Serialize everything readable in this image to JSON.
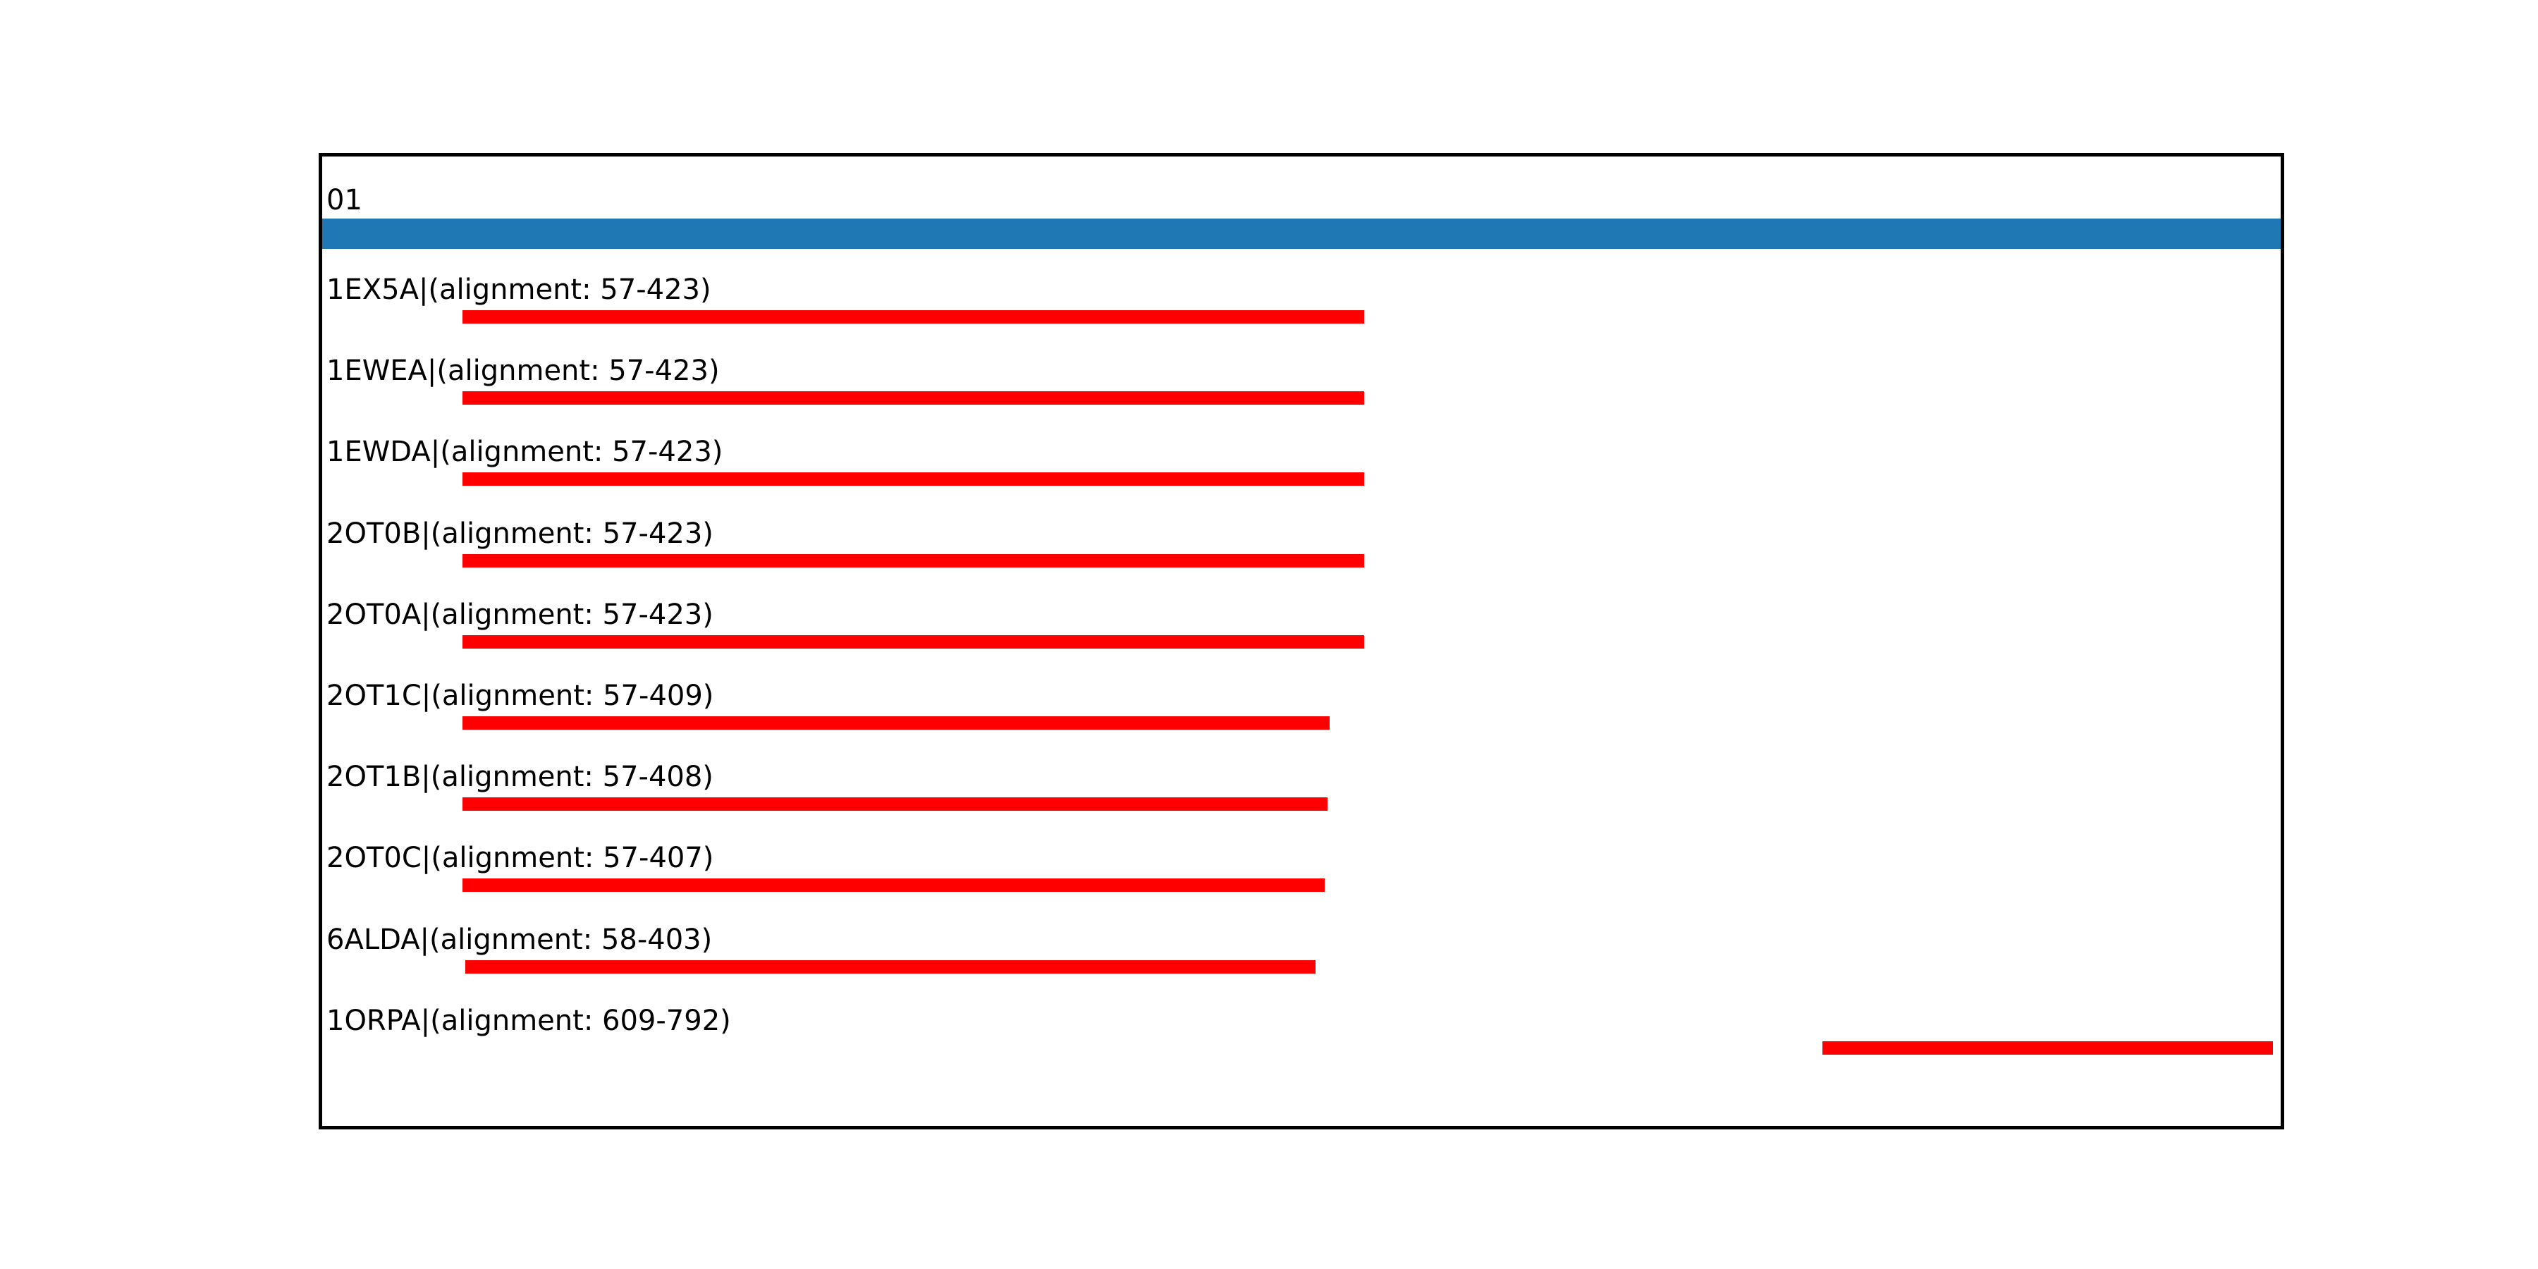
{
  "figure": {
    "background": "#ffffff"
  },
  "chart_data": {
    "type": "bar",
    "subtype": "horizontal-alignment-spans",
    "title": "",
    "xlabel": "",
    "ylabel": "",
    "grid": false,
    "axes_ticks_visible": false,
    "xlim": [
      0,
      795
    ],
    "border_color": "#000000",
    "hit_color": "#ff0000",
    "query": {
      "label": "01",
      "start": 0,
      "end": 795,
      "color": "#1f77b4"
    },
    "hits": [
      {
        "id": "1EX5A",
        "label": "1EX5A|(alignment: 57-423)",
        "start": 57,
        "end": 423
      },
      {
        "id": "1EWEA",
        "label": "1EWEA|(alignment: 57-423)",
        "start": 57,
        "end": 423
      },
      {
        "id": "1EWDA",
        "label": "1EWDA|(alignment: 57-423)",
        "start": 57,
        "end": 423
      },
      {
        "id": "2OT0B",
        "label": "2OT0B|(alignment: 57-423)",
        "start": 57,
        "end": 423
      },
      {
        "id": "2OT0A",
        "label": "2OT0A|(alignment: 57-423)",
        "start": 57,
        "end": 423
      },
      {
        "id": "2OT1C",
        "label": "2OT1C|(alignment: 57-409)",
        "start": 57,
        "end": 409
      },
      {
        "id": "2OT1B",
        "label": "2OT1B|(alignment: 57-408)",
        "start": 57,
        "end": 408
      },
      {
        "id": "2OT0C",
        "label": "2OT0C|(alignment: 57-407)",
        "start": 57,
        "end": 407
      },
      {
        "id": "6ALDA",
        "label": "6ALDA|(alignment: 58-403)",
        "start": 58,
        "end": 403
      },
      {
        "id": "1ORPA",
        "label": "1ORPA|(alignment: 609-792)",
        "start": 609,
        "end": 792
      }
    ]
  }
}
